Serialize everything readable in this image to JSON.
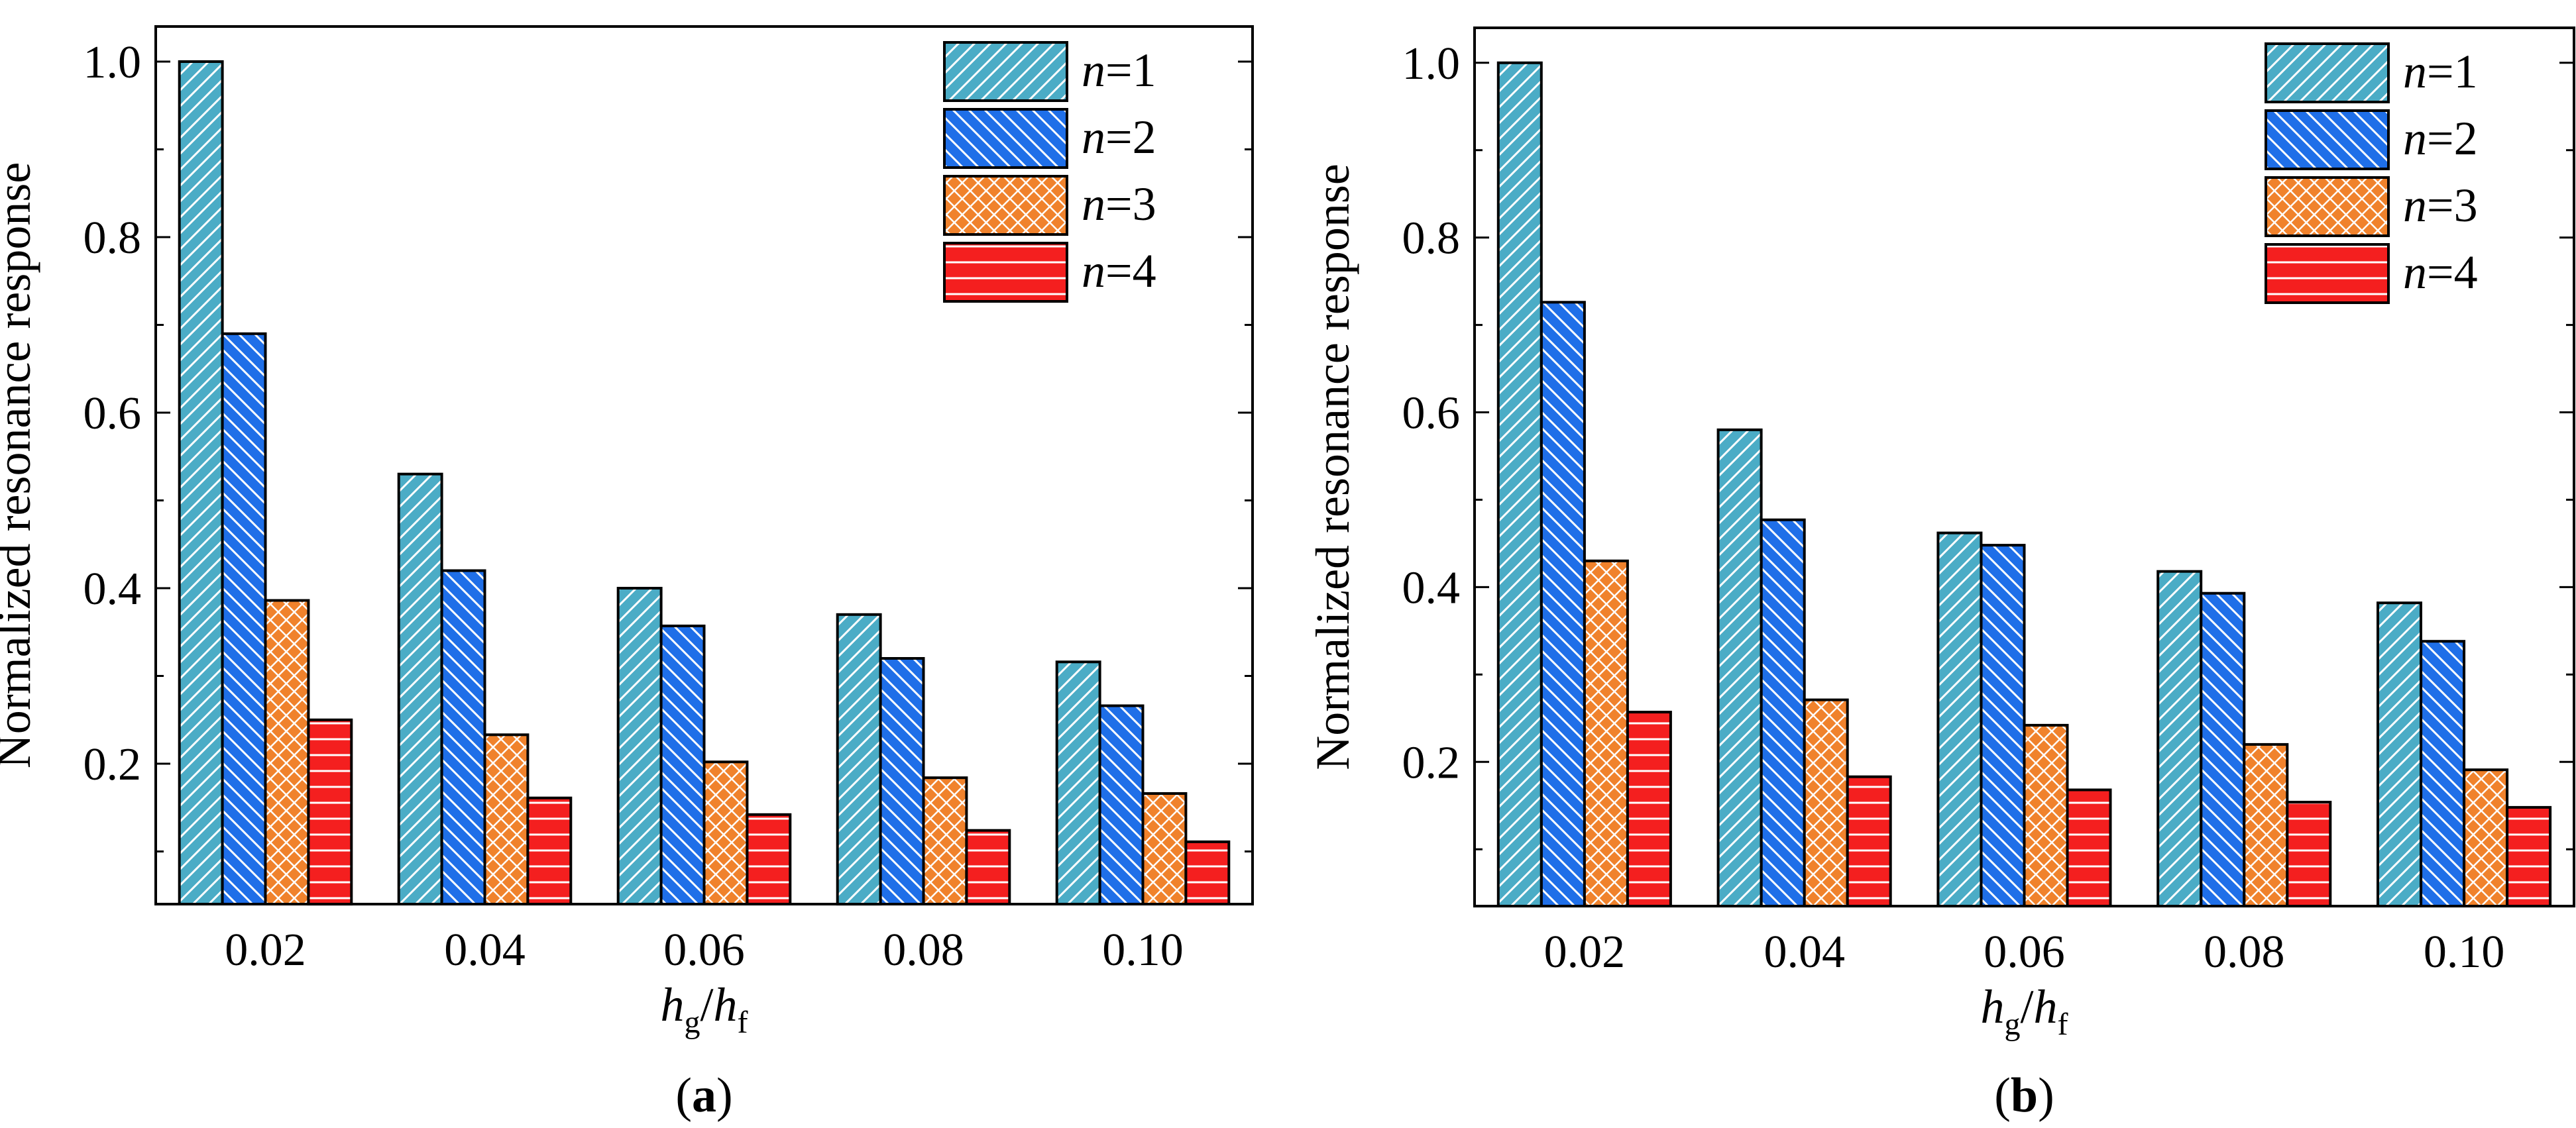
{
  "chart_data": [
    {
      "type": "bar",
      "caption_letter": "a",
      "ylabel": "Normalized resonance response",
      "xlabel_main": "h",
      "xlabel_main_sub": "g",
      "xlabel_slash": "/",
      "xlabel_den": "h",
      "xlabel_den_sub": "f",
      "categories": [
        "0.02",
        "0.04",
        "0.06",
        "0.08",
        "0.10"
      ],
      "ylim": [
        0.04,
        1.04
      ],
      "yticks": [
        "0.2",
        "0.4",
        "0.6",
        "0.8",
        "1.0"
      ],
      "ytick_values": [
        0.2,
        0.4,
        0.6,
        0.8,
        1.0
      ],
      "legend_position": "top-right",
      "series": [
        {
          "name": "n=1",
          "var": "n",
          "eq": "=1",
          "color": "#4bacc6",
          "pattern": "diag-right",
          "values": [
            1.0,
            0.53,
            0.4,
            0.37,
            0.316
          ]
        },
        {
          "name": "n=2",
          "var": "n",
          "eq": "=2",
          "color": "#1f6fe8",
          "pattern": "diag-left",
          "values": [
            0.69,
            0.42,
            0.357,
            0.32,
            0.266
          ]
        },
        {
          "name": "n=3",
          "var": "n",
          "eq": "=3",
          "color": "#f0822c",
          "pattern": "crosshatch",
          "values": [
            0.386,
            0.233,
            0.202,
            0.184,
            0.166
          ]
        },
        {
          "name": "n=4",
          "var": "n",
          "eq": "=4",
          "color": "#f41f1f",
          "pattern": "horizontal",
          "values": [
            0.25,
            0.161,
            0.142,
            0.124,
            0.111
          ]
        }
      ]
    },
    {
      "type": "bar",
      "caption_letter": "b",
      "ylabel": "Normalized resonance response",
      "xlabel_main": "h",
      "xlabel_main_sub": "g",
      "xlabel_slash": "/",
      "xlabel_den": "h",
      "xlabel_den_sub": "f",
      "categories": [
        "0.02",
        "0.04",
        "0.06",
        "0.08",
        "0.10"
      ],
      "ylim": [
        0.035,
        1.04
      ],
      "yticks": [
        "0.2",
        "0.4",
        "0.6",
        "0.8",
        "1.0"
      ],
      "ytick_values": [
        0.2,
        0.4,
        0.6,
        0.8,
        1.0
      ],
      "legend_position": "top-right",
      "series": [
        {
          "name": "n=1",
          "var": "n",
          "eq": "=1",
          "color": "#4bacc6",
          "pattern": "diag-right",
          "values": [
            1.0,
            0.58,
            0.462,
            0.418,
            0.382
          ]
        },
        {
          "name": "n=2",
          "var": "n",
          "eq": "=2",
          "color": "#1f6fe8",
          "pattern": "diag-left",
          "values": [
            0.726,
            0.477,
            0.448,
            0.393,
            0.338
          ]
        },
        {
          "name": "n=3",
          "var": "n",
          "eq": "=3",
          "color": "#f0822c",
          "pattern": "crosshatch",
          "values": [
            0.43,
            0.271,
            0.242,
            0.22,
            0.191
          ]
        },
        {
          "name": "n=4",
          "var": "n",
          "eq": "=4",
          "color": "#f41f1f",
          "pattern": "horizontal",
          "values": [
            0.257,
            0.183,
            0.168,
            0.154,
            0.148
          ]
        }
      ]
    }
  ]
}
